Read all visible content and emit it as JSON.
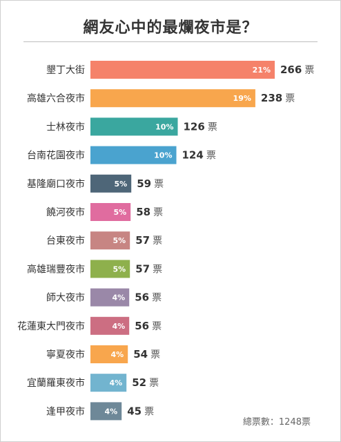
{
  "title": "網友心中的最爛夜市是？",
  "total_label": "總票數：1248票",
  "vote_unit": "票",
  "chart_data": {
    "type": "bar",
    "orientation": "horizontal",
    "title": "網友心中的最爛夜市是？",
    "categories": [
      "墾丁大街",
      "高雄六合夜市",
      "士林夜市",
      "台南花園夜市",
      "基隆廟口夜市",
      "饒河夜市",
      "台東夜市",
      "高雄瑞豐夜市",
      "師大夜市",
      "花蓮東大門夜市",
      "寧夏夜市",
      "宜蘭羅東夜市",
      "逢甲夜市"
    ],
    "values": [
      266,
      238,
      126,
      124,
      59,
      58,
      57,
      57,
      56,
      56,
      54,
      52,
      45
    ],
    "percent_labels": [
      "21%",
      "19%",
      "10%",
      "10%",
      "5%",
      "5%",
      "5%",
      "5%",
      "4%",
      "4%",
      "4%",
      "4%",
      "4%"
    ],
    "colors": [
      "#f5826a",
      "#f8a64d",
      "#3aa79f",
      "#4aa3cf",
      "#4e6678",
      "#e06c9f",
      "#c78583",
      "#8eb04c",
      "#9a88a8",
      "#cc6e82",
      "#f8a64d",
      "#72b4cf",
      "#6e8898"
    ],
    "grid": false,
    "legend": "none"
  }
}
